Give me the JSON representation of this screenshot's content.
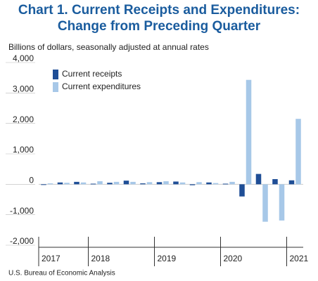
{
  "chart_data": {
    "type": "bar",
    "title": [
      "Chart 1. Current Receipts and Expenditures:",
      "Change from Preceding Quarter"
    ],
    "subtitle": "Billions of dollars, seasonally adjusted at annual rates",
    "source": "U.S. Bureau of Economic Analysis",
    "categories": [
      "2017",
      null,
      null,
      "2018",
      null,
      null,
      null,
      "2019",
      null,
      null,
      null,
      "2020",
      null,
      null,
      null,
      "2021"
    ],
    "series": [
      {
        "name": "Current receipts",
        "color": "#1f4e96",
        "values": [
          -20,
          60,
          80,
          20,
          50,
          120,
          30,
          70,
          90,
          -30,
          60,
          20,
          -400,
          340,
          170,
          130
        ]
      },
      {
        "name": "Current expenditures",
        "color": "#a7c8e8",
        "values": [
          30,
          50,
          60,
          100,
          80,
          80,
          70,
          100,
          60,
          70,
          40,
          80,
          3430,
          -1230,
          -1190,
          2150
        ]
      }
    ],
    "ylim": [
      -2000,
      4000
    ],
    "yticks": [
      {
        "value": -2000,
        "label": "-2,000"
      },
      {
        "value": -1000,
        "label": "-1,000"
      },
      0,
      {
        "value": 1000,
        "label": "1,000"
      },
      {
        "value": 2000,
        "label": "2,000"
      },
      {
        "value": 3000,
        "label": "3,000"
      },
      {
        "value": 4000,
        "label": "4,000"
      }
    ],
    "legend": "upper-left"
  }
}
